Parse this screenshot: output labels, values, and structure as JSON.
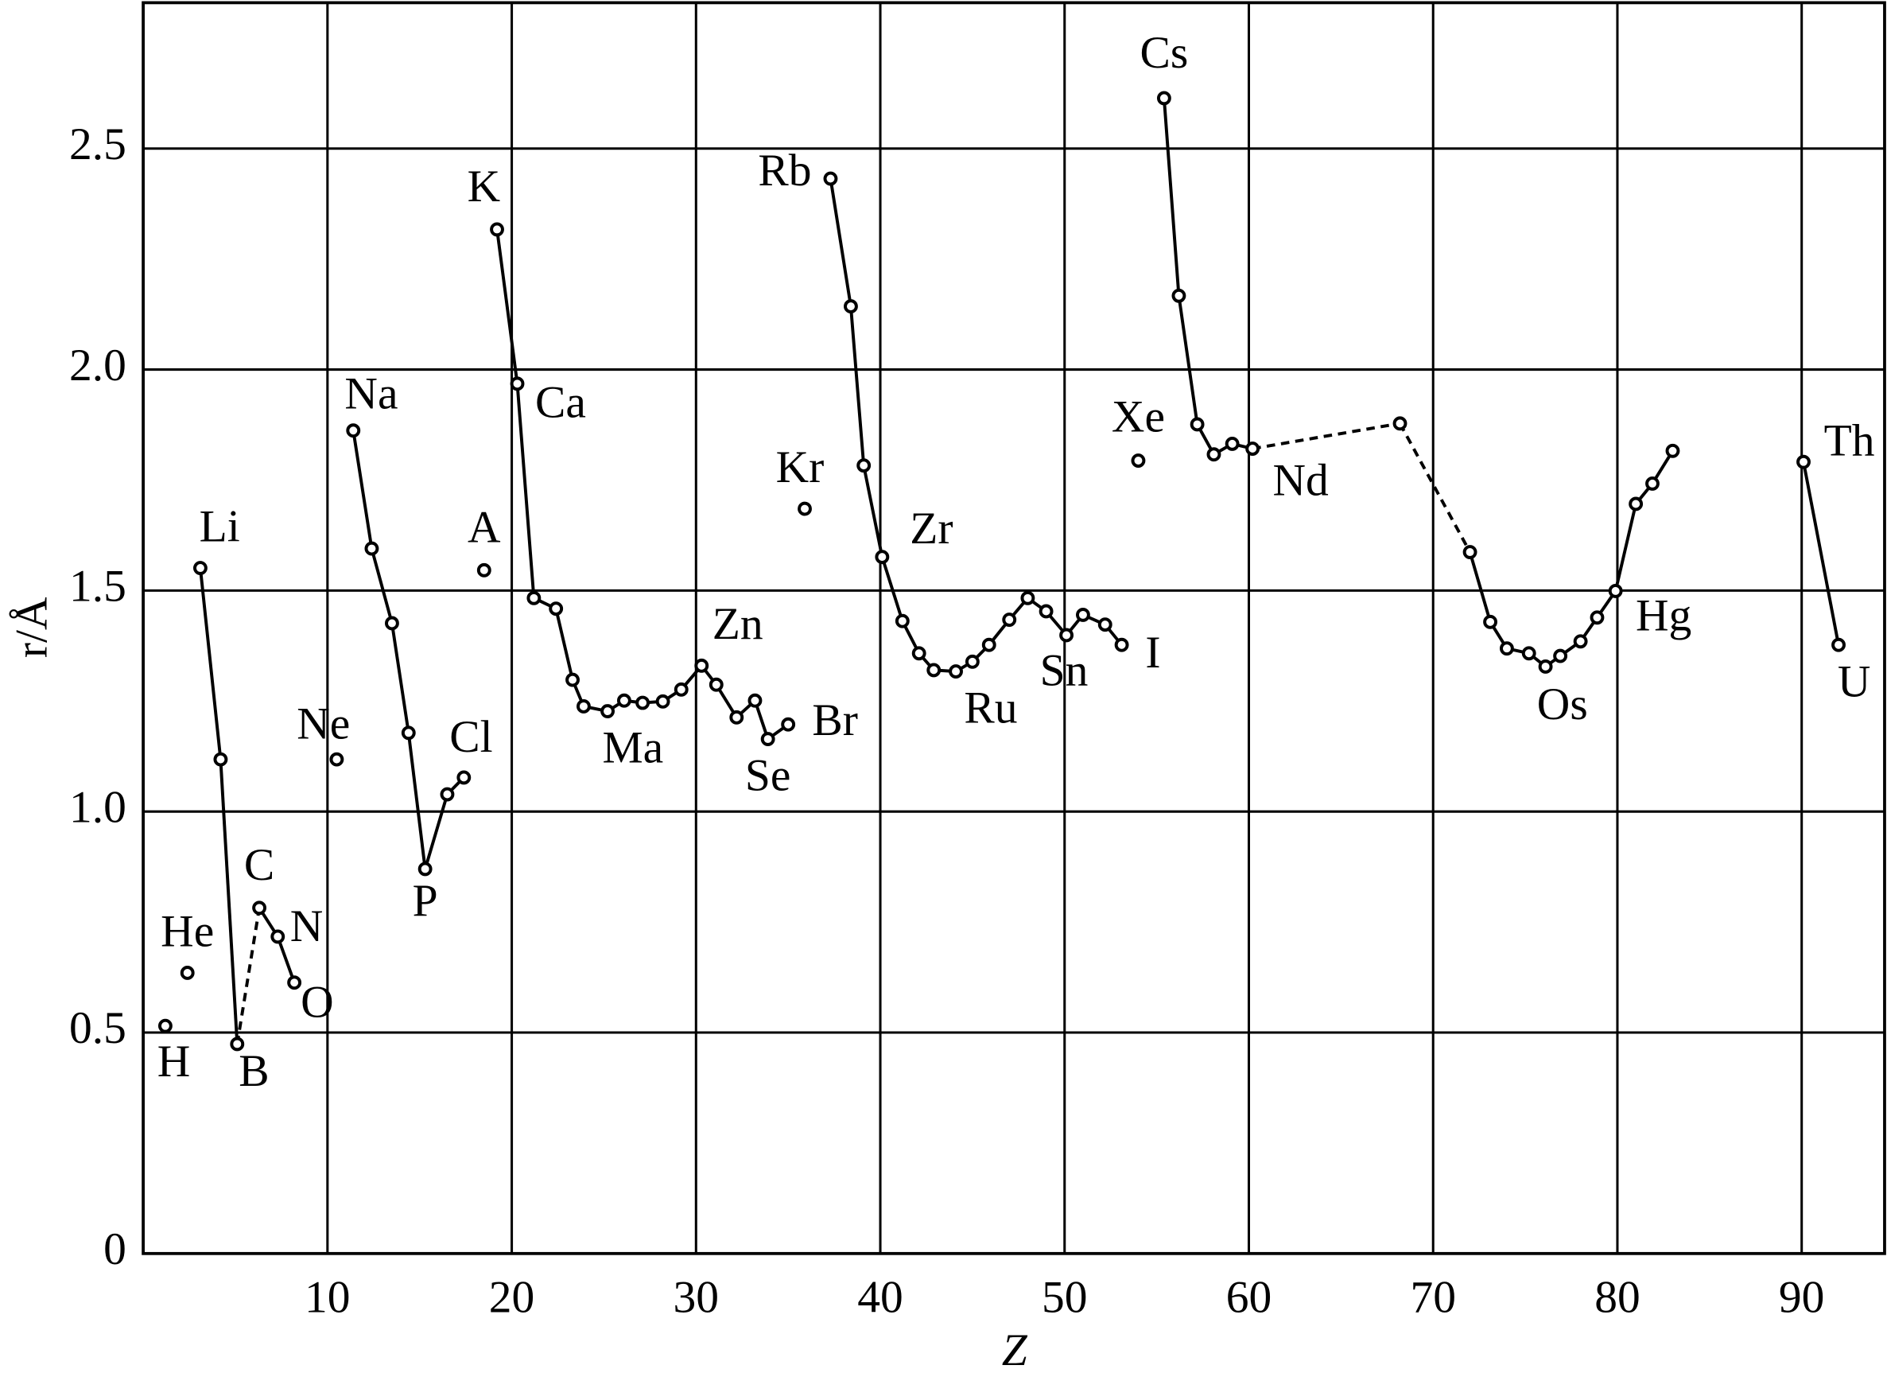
{
  "chart_data": {
    "type": "scatter",
    "x_label": "Z",
    "y_label": "r/Å",
    "xlim": [
      0,
      94.5
    ],
    "ylim": [
      0,
      2.83
    ],
    "xticks": [
      10,
      20,
      30,
      40,
      50,
      60,
      70,
      80,
      90
    ],
    "yticks": [
      0,
      0.5,
      {
        "value": 1,
        "label": "1.0"
      },
      1.5,
      {
        "value": 2,
        "label": "2.0"
      },
      2.5
    ],
    "grid": true,
    "color": "#000000",
    "x": [
      1.2,
      2.4,
      3.1,
      4.2,
      5.1,
      6.3,
      7.3,
      8.2,
      10.5,
      11.4,
      12.4,
      13.5,
      14.4,
      15.3,
      16.5,
      17.4,
      18.5,
      19.2,
      20.3,
      21.2,
      22.4,
      23.3,
      23.9,
      25.2,
      26.1,
      27.1,
      28.2,
      29.2,
      30.3,
      31.1,
      32.2,
      33.2,
      33.9,
      35.0,
      35.9,
      37.3,
      38.4,
      39.1,
      40.1,
      41.2,
      42.1,
      42.9,
      44.1,
      45.0,
      45.9,
      47.0,
      48.0,
      49.0,
      50.1,
      51.0,
      52.2,
      53.1,
      54.0,
      55.4,
      56.2,
      57.2,
      58.1,
      59.1,
      60.2,
      68.2,
      72.0,
      73.1,
      74.0,
      75.2,
      76.1,
      76.9,
      78.0,
      78.9,
      79.9,
      81.0,
      81.9,
      83.0,
      90.1,
      92.0
    ],
    "values": [
      0.515,
      0.635,
      1.551,
      1.118,
      0.474,
      0.782,
      0.717,
      0.613,
      1.118,
      1.862,
      1.595,
      1.426,
      1.178,
      0.87,
      1.039,
      1.077,
      1.546,
      2.317,
      1.968,
      1.483,
      1.459,
      1.298,
      1.238,
      1.227,
      1.251,
      1.246,
      1.249,
      1.276,
      1.33,
      1.287,
      1.213,
      1.251,
      1.164,
      1.197,
      1.685,
      2.432,
      2.143,
      1.783,
      1.576,
      1.431,
      1.358,
      1.32,
      1.317,
      1.339,
      1.377,
      1.434,
      1.483,
      1.453,
      1.399,
      1.445,
      1.423,
      1.377,
      1.794,
      2.614,
      2.167,
      1.876,
      1.808,
      1.832,
      1.821,
      1.878,
      1.587,
      1.429,
      1.369,
      1.358,
      1.328,
      1.352,
      1.385,
      1.439,
      1.499,
      1.696,
      1.742,
      1.816,
      1.791,
      1.377
    ],
    "connect": [
      null,
      null,
      null,
      "solid",
      "solid",
      "dashed",
      "solid",
      "solid",
      null,
      null,
      "solid",
      "solid",
      "solid",
      "solid",
      "solid",
      "solid",
      null,
      null,
      "solid",
      "solid",
      "solid",
      "solid",
      "solid",
      "solid",
      "solid",
      "solid",
      "solid",
      "solid",
      "solid",
      "solid",
      "solid",
      "solid",
      "solid",
      "solid",
      null,
      null,
      "solid",
      "solid",
      "solid",
      "solid",
      "solid",
      "solid",
      "solid",
      "solid",
      "solid",
      "solid",
      "solid",
      "solid",
      "solid",
      "solid",
      "solid",
      "solid",
      null,
      null,
      "solid",
      "solid",
      "solid",
      "solid",
      "solid",
      "dashed",
      "dashed",
      "solid",
      "solid",
      "solid",
      "solid",
      "solid",
      "solid",
      "solid",
      "solid",
      "solid",
      "solid",
      "solid",
      null,
      "solid"
    ],
    "labels": [
      "H",
      "He",
      "Li",
      null,
      "B",
      "C",
      "N",
      "O",
      "Ne",
      "Na",
      null,
      null,
      null,
      "P",
      null,
      "Cl",
      "A",
      "K",
      "Ca",
      null,
      null,
      null,
      null,
      "Ma",
      null,
      null,
      null,
      null,
      "Zn",
      null,
      null,
      null,
      "Se",
      "Br",
      "Kr",
      "Rb",
      null,
      null,
      "Zr",
      null,
      null,
      null,
      "Ru",
      null,
      null,
      null,
      null,
      null,
      "Sn",
      null,
      null,
      "I",
      "Xe",
      "Cs",
      null,
      null,
      null,
      null,
      "Nd",
      null,
      null,
      null,
      null,
      null,
      "Os",
      null,
      null,
      null,
      "Hg",
      null,
      null,
      null,
      "Th",
      "U"
    ]
  }
}
